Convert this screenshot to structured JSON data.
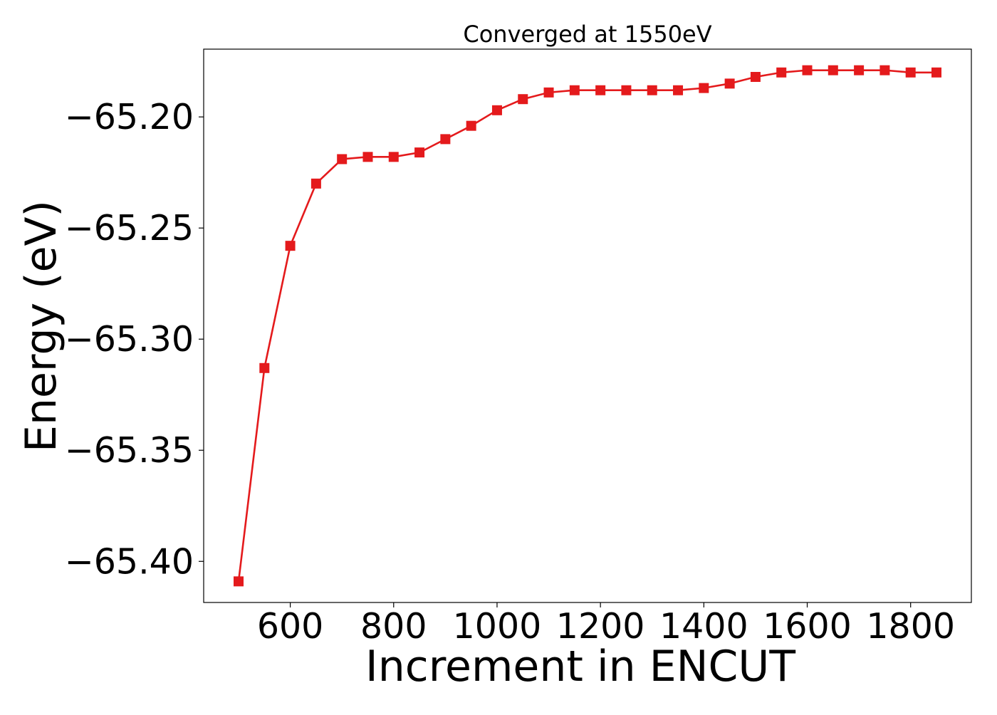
{
  "chart_data": {
    "type": "line",
    "title": "Converged at 1550eV",
    "xlabel": "Increment in ENCUT",
    "ylabel": "Energy (eV)",
    "x": [
      500,
      550,
      600,
      650,
      700,
      750,
      800,
      850,
      900,
      950,
      1000,
      1050,
      1100,
      1150,
      1200,
      1250,
      1300,
      1350,
      1400,
      1450,
      1500,
      1550,
      1600,
      1650,
      1700,
      1750,
      1800,
      1850
    ],
    "series": [
      {
        "values": [
          -65.409,
          -65.313,
          -65.258,
          -65.23,
          -65.219,
          -65.218,
          -65.218,
          -65.216,
          -65.21,
          -65.204,
          -65.197,
          -65.192,
          -65.189,
          -65.188,
          -65.188,
          -65.188,
          -65.188,
          -65.188,
          -65.187,
          -65.185,
          -65.182,
          -65.18,
          -65.179,
          -65.179,
          -65.179,
          -65.179,
          -65.18,
          -65.18
        ],
        "color": "#e41a1c",
        "marker": "square"
      }
    ],
    "xticks": [
      600,
      800,
      1000,
      1200,
      1400,
      1600,
      1800
    ],
    "xtick_labels": [
      "600",
      "800",
      "1000",
      "1200",
      "1400",
      "1600",
      "1800"
    ],
    "yticks": [
      -65.4,
      -65.35,
      -65.3,
      -65.25,
      -65.2
    ],
    "ytick_labels": [
      "−65.40",
      "−65.35",
      "−65.30",
      "−65.25",
      "−65.20"
    ],
    "xlim": [
      432.5,
      1917.5
    ],
    "ylim": [
      -65.4185,
      -65.1695
    ],
    "grid": false,
    "legend": false
  }
}
